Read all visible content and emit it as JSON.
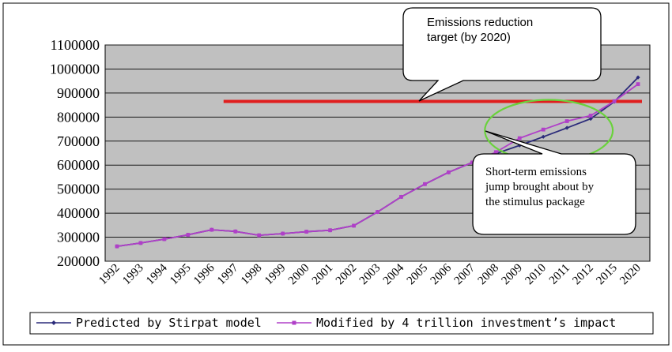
{
  "chart_data": {
    "type": "line",
    "title": "",
    "xlabel": "",
    "ylabel": "",
    "ylim": [
      200000,
      1100000
    ],
    "y_ticks": [
      200000,
      300000,
      400000,
      500000,
      600000,
      700000,
      800000,
      900000,
      1000000,
      1100000
    ],
    "y_tick_labels": [
      "200000",
      "300000",
      "400000",
      "500000",
      "600000",
      "700000",
      "800000",
      "900000",
      "1000000",
      "1100000"
    ],
    "categories": [
      "1992",
      "1993",
      "1994",
      "1995",
      "1996",
      "1997",
      "1998",
      "1999",
      "2000",
      "2001",
      "2002",
      "2003",
      "2004",
      "2005",
      "2006",
      "2007",
      "2008",
      "2009",
      "2010",
      "2011",
      "2012",
      "2015",
      "2020"
    ],
    "grid": true,
    "legend_position": "bottom",
    "series": [
      {
        "name": "Predicted by Stirpat model",
        "color": "#2b2b7a",
        "marker": "diamond",
        "values": [
          262000,
          276000,
          292000,
          310000,
          331000,
          324000,
          308000,
          315000,
          323000,
          329000,
          348000,
          405000,
          468000,
          521000,
          570000,
          611000,
          648000,
          682000,
          718000,
          755000,
          793000,
          864000,
          965000
        ]
      },
      {
        "name": "Modified by 4 trillion investment’s impact",
        "color": "#b040c8",
        "marker": "square",
        "values": [
          262000,
          276000,
          292000,
          310000,
          331000,
          324000,
          308000,
          315000,
          323000,
          329000,
          348000,
          405000,
          468000,
          521000,
          570000,
          611000,
          654000,
          712000,
          748000,
          783000,
          806000,
          866000,
          937000
        ]
      }
    ],
    "reference_line": {
      "value": 865000,
      "from_category": "1997",
      "color": "#e01e1e"
    },
    "annotations": [
      {
        "text_lines": [
          "Emissions reduction",
          "target (by 2020)"
        ]
      },
      {
        "text_lines": [
          "Short-term emissions",
          "jump brought about by",
          "the stimulus package"
        ]
      }
    ],
    "highlight": {
      "from_category": "2009",
      "to_category": "2012",
      "color": "#6ad23c"
    },
    "colors": {
      "plot_background": "#c0c0c0",
      "grid": "#1a1a1a",
      "axis_text": "#000000"
    }
  }
}
